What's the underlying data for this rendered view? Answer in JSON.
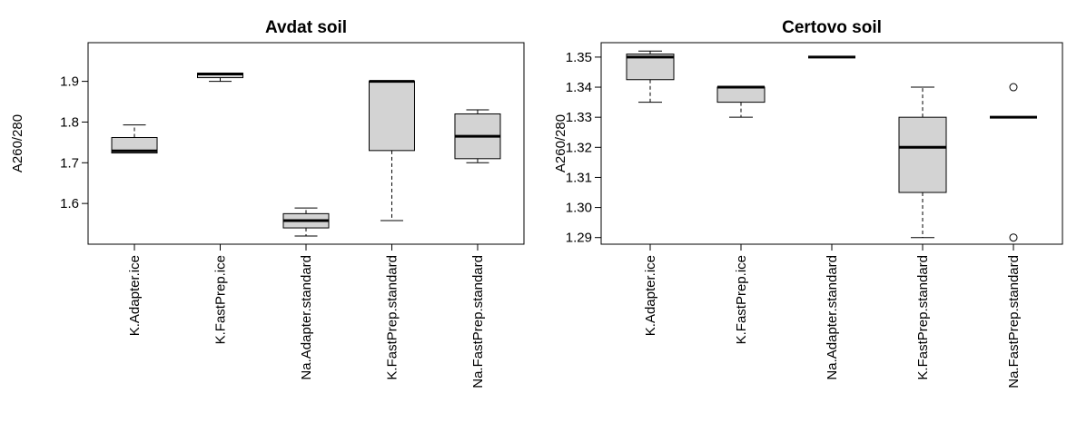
{
  "chart_data": [
    {
      "type": "boxplot",
      "title": "Avdat soil",
      "ylabel": "A260/280",
      "ylim": [
        1.5,
        1.995
      ],
      "yticks": [
        "1.6",
        "1.7",
        "1.8",
        "1.9"
      ],
      "categories": [
        "K.Adapter.ice",
        "K.FastPrep.ice",
        "Na.Adapter.standard",
        "K.FastPrep.standard",
        "Na.FastPrep.standard"
      ],
      "boxes": [
        {
          "lower_whisker": 1.724,
          "q1": 1.724,
          "median": 1.729,
          "q3": 1.762,
          "upper_whisker": 1.793,
          "outliers": []
        },
        {
          "lower_whisker": 1.9,
          "q1": 1.909,
          "median": 1.918,
          "q3": 1.92,
          "upper_whisker": 1.92,
          "outliers": []
        },
        {
          "lower_whisker": 1.52,
          "q1": 1.54,
          "median": 1.558,
          "q3": 1.575,
          "upper_whisker": 1.589,
          "outliers": []
        },
        {
          "lower_whisker": 1.558,
          "q1": 1.73,
          "median": 1.9,
          "q3": 1.9,
          "upper_whisker": 1.9,
          "outliers": []
        },
        {
          "lower_whisker": 1.7,
          "q1": 1.71,
          "median": 1.765,
          "q3": 1.82,
          "upper_whisker": 1.83,
          "outliers": []
        }
      ],
      "fill_color": "#d3d3d3"
    },
    {
      "type": "boxplot",
      "title": "Certovo soil",
      "ylabel": "A260/280",
      "ylim": [
        1.2878,
        1.3548
      ],
      "yticks": [
        "1.29",
        "1.30",
        "1.31",
        "1.32",
        "1.33",
        "1.34",
        "1.35"
      ],
      "categories": [
        "K.Adapter.ice",
        "K.FastPrep.ice",
        "Na.Adapter.standard",
        "K.FastPrep.standard",
        "Na.FastPrep.standard"
      ],
      "boxes": [
        {
          "lower_whisker": 1.335,
          "q1": 1.3425,
          "median": 1.35,
          "q3": 1.351,
          "upper_whisker": 1.352,
          "outliers": []
        },
        {
          "lower_whisker": 1.33,
          "q1": 1.335,
          "median": 1.34,
          "q3": 1.34,
          "upper_whisker": 1.34,
          "outliers": []
        },
        {
          "lower_whisker": 1.35,
          "q1": 1.35,
          "median": 1.35,
          "q3": 1.35,
          "upper_whisker": 1.35,
          "outliers": []
        },
        {
          "lower_whisker": 1.29,
          "q1": 1.305,
          "median": 1.32,
          "q3": 1.33,
          "upper_whisker": 1.34,
          "outliers": []
        },
        {
          "lower_whisker": 1.33,
          "q1": 1.33,
          "median": 1.33,
          "q3": 1.33,
          "upper_whisker": 1.33,
          "outliers": [
            1.34,
            1.29
          ]
        }
      ],
      "fill_color": "#d3d3d3"
    }
  ]
}
